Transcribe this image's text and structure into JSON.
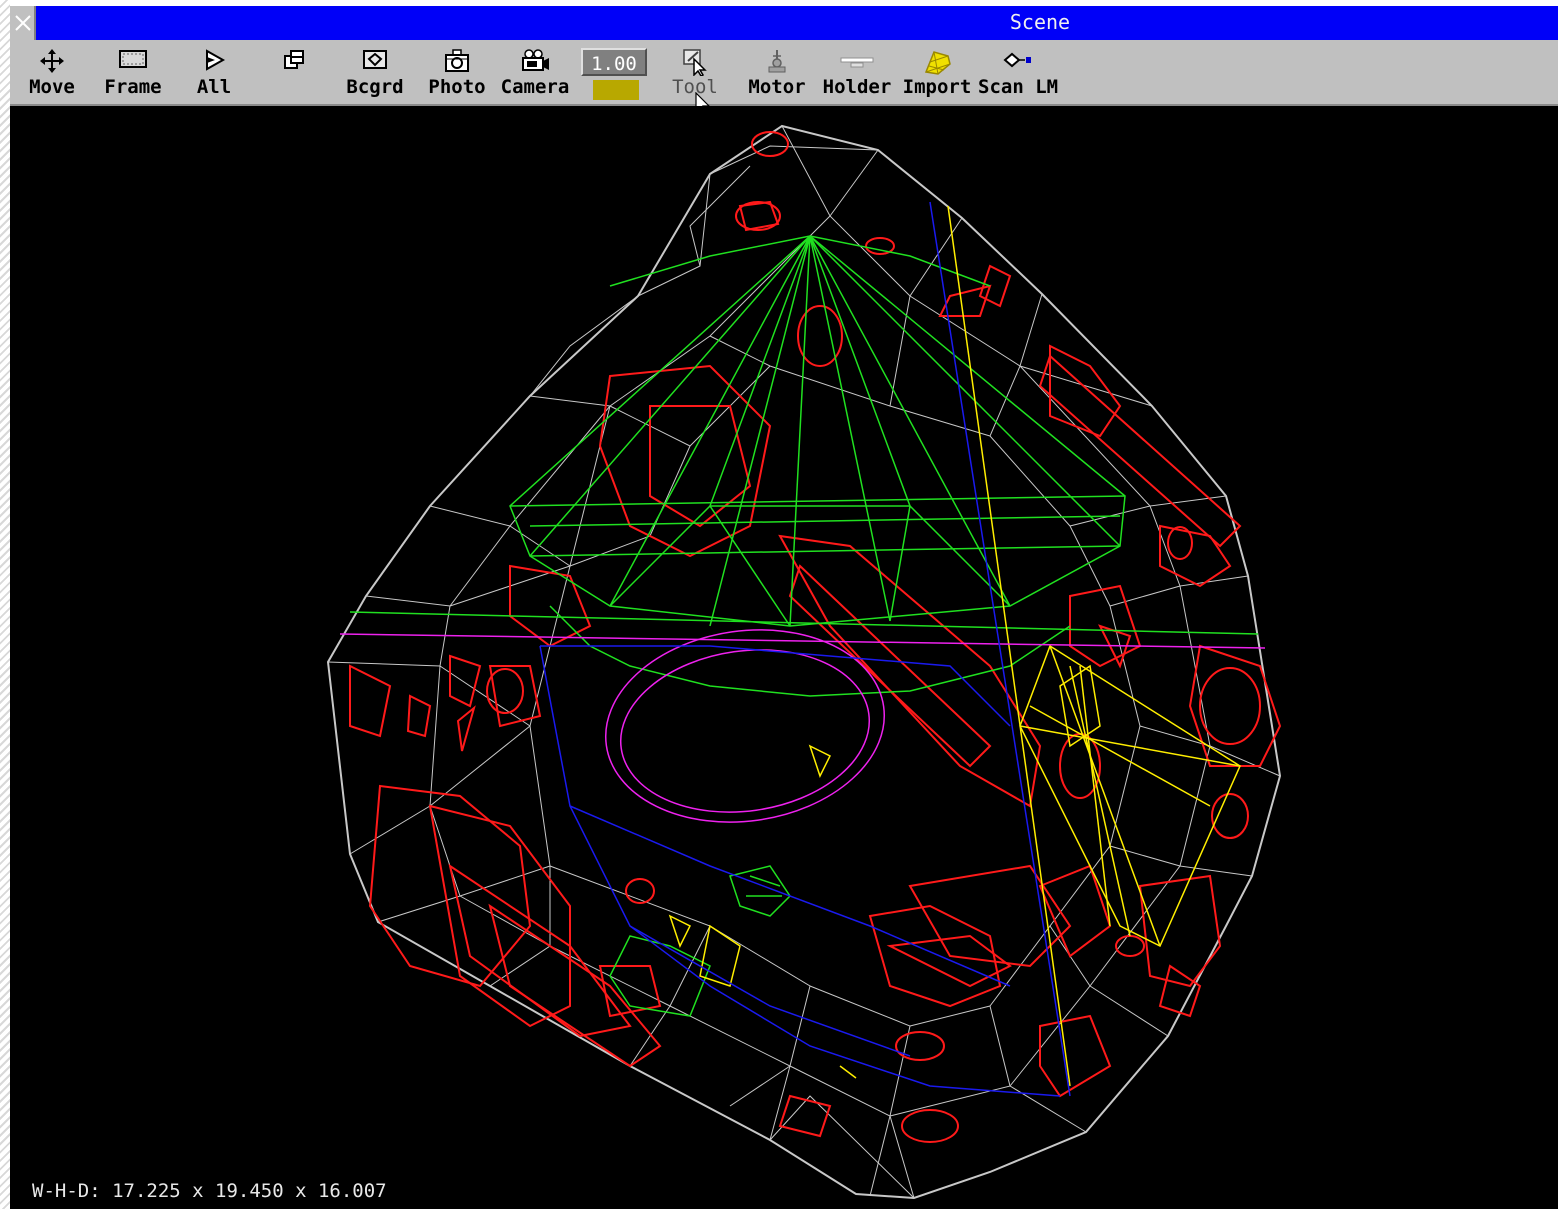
{
  "window": {
    "title": "Scene"
  },
  "toolbar": {
    "buttons": [
      {
        "label": "Move",
        "icon": "move-icon"
      },
      {
        "label": "Frame",
        "icon": "frame-icon"
      },
      {
        "label": "All",
        "icon": "all-icon"
      },
      {
        "label": "",
        "icon": "window-layout-icon"
      },
      {
        "label": "Bcgrd",
        "icon": "background-icon"
      },
      {
        "label": "Photo",
        "icon": "photo-icon"
      },
      {
        "label": "Camera",
        "icon": "camera-icon"
      },
      {
        "label": "Tool",
        "icon": "tool-icon"
      },
      {
        "label": "Motor",
        "icon": "motor-icon"
      },
      {
        "label": "Holder",
        "icon": "holder-icon"
      },
      {
        "label": "Import",
        "icon": "import-icon"
      },
      {
        "label": "Scan LM",
        "icon": "scan-lm-icon"
      }
    ],
    "zoom_value": "1.00",
    "zoom_color": "#b8a800"
  },
  "colors": {
    "titlebar": "#0000f8",
    "toolbar": "#c0c0c0",
    "viewport": "#000000",
    "wireframe_outer": "#c8c8c8",
    "inclusion": "#ff1a1a",
    "crown_model": "#20e020",
    "pavilion_model": "#ffee00",
    "girdle_plane": "#ee22ee",
    "axis_blue": "#1a1aee"
  },
  "status": {
    "dimensions": "W-H-D: 17.225 x 19.450 x 16.007"
  }
}
